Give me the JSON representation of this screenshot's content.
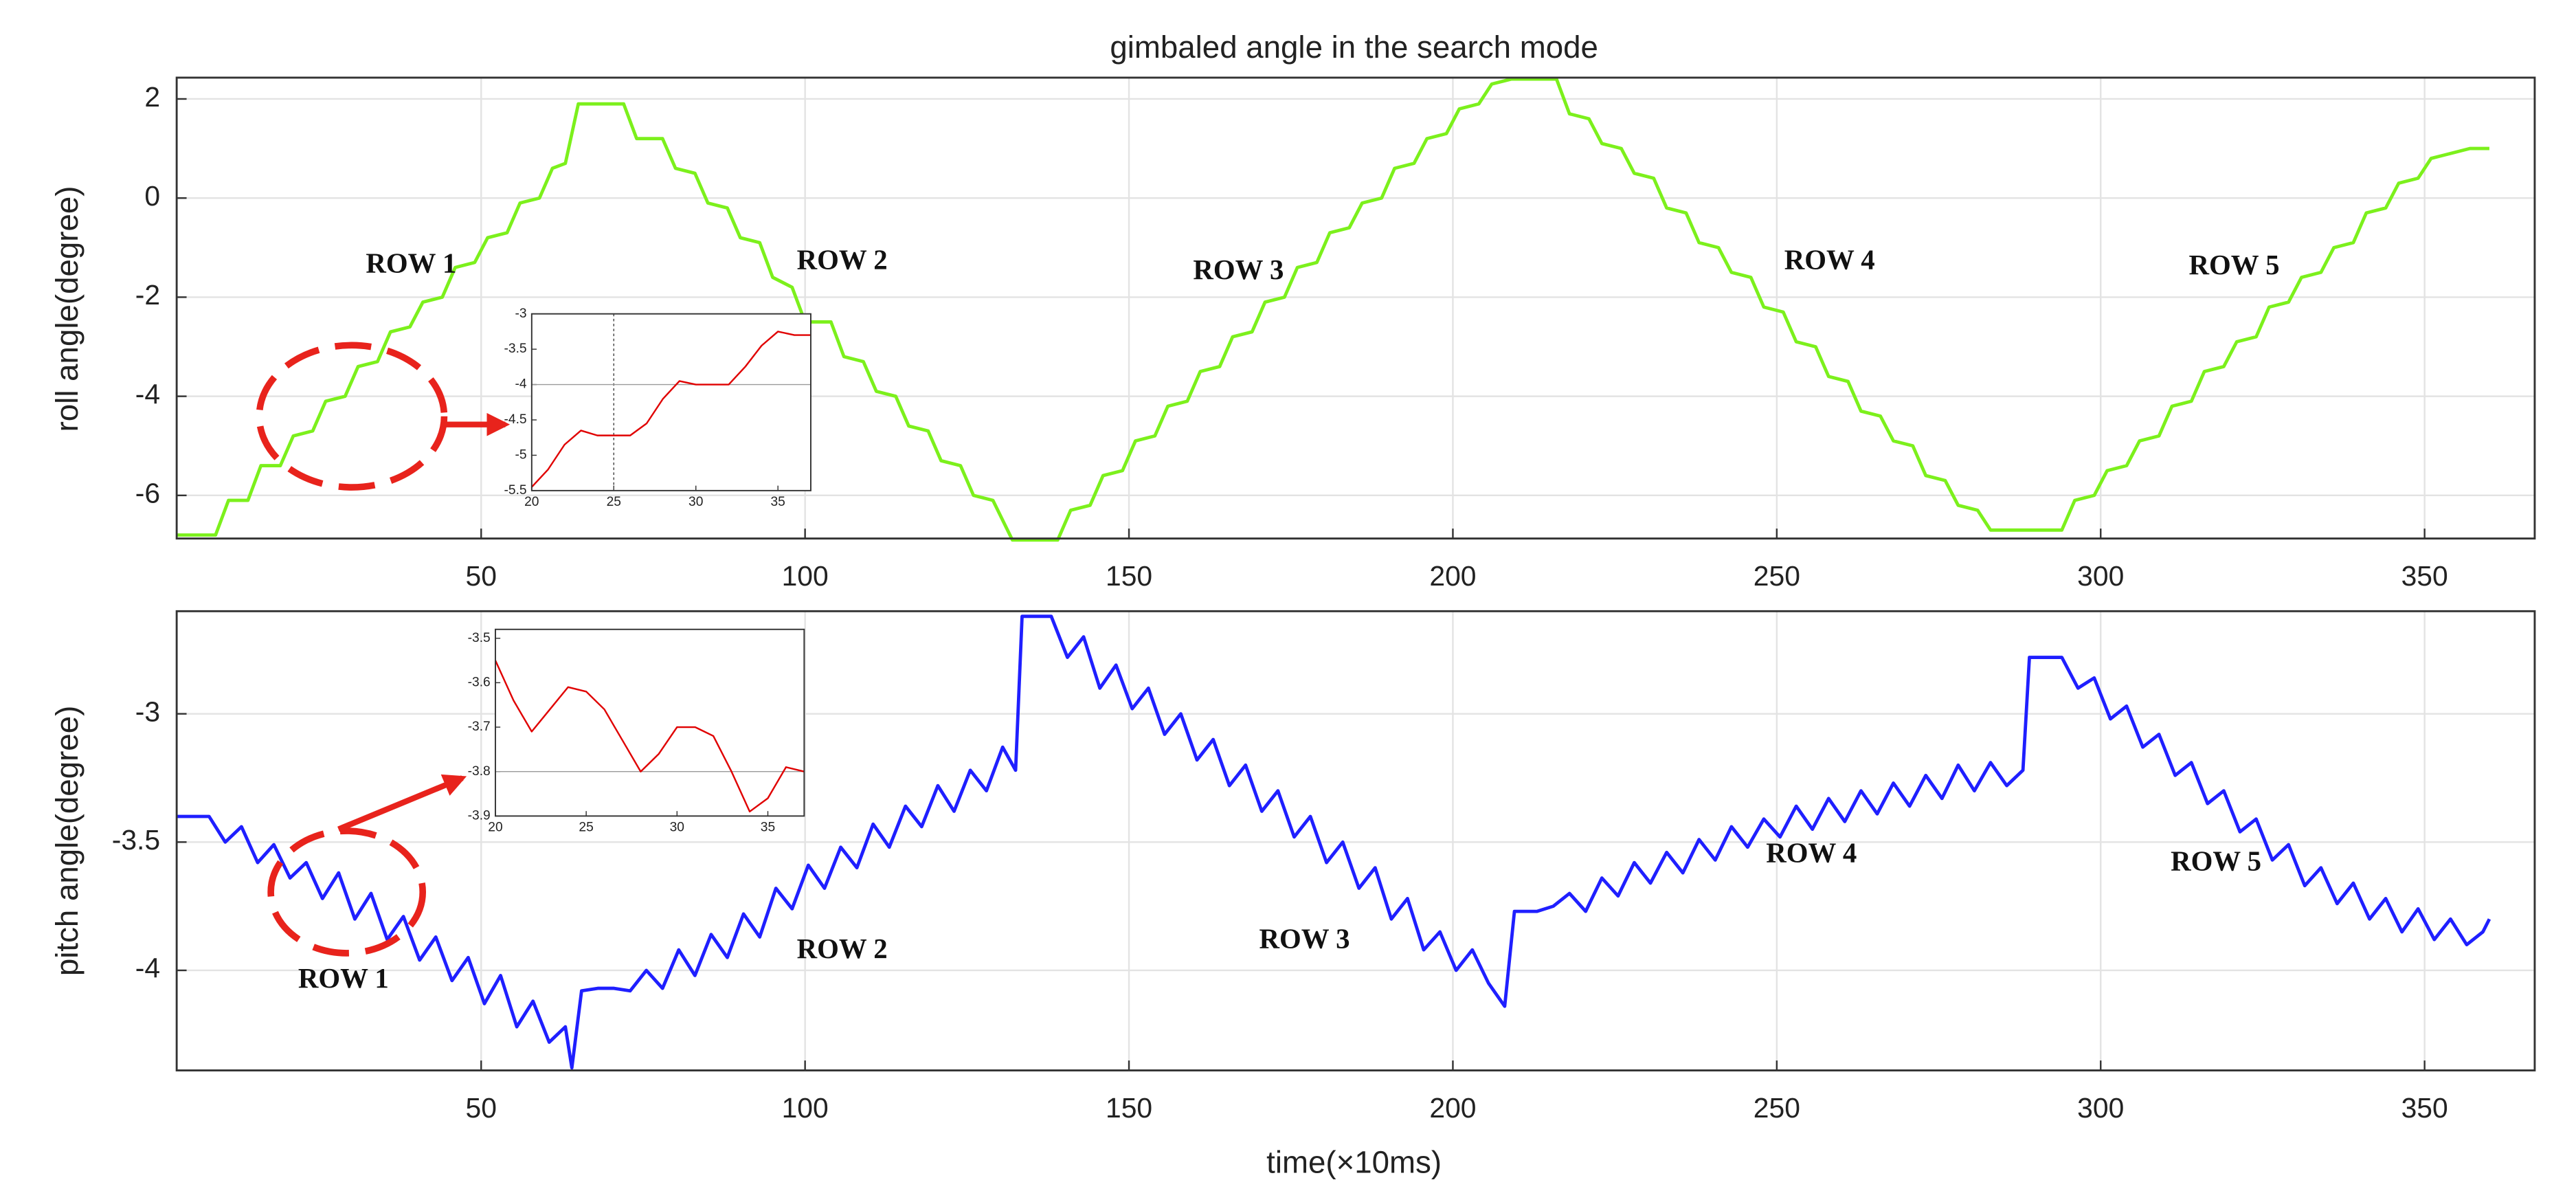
{
  "chart_data": [
    {
      "type": "line",
      "title": "gimbaled angle in the search mode",
      "ylabel": "roll angle(degree)",
      "xlim": [
        3,
        367
      ],
      "ylim": [
        -6.87,
        2.43
      ],
      "xticks": [
        50,
        100,
        150,
        200,
        250,
        300,
        350
      ],
      "yticks": [
        -6,
        -4,
        -2,
        0,
        2
      ],
      "grid": true,
      "color": "#7cf01c",
      "annotations": [
        "ROW 1",
        "ROW 2",
        "ROW 3",
        "ROW 4",
        "ROW 5"
      ],
      "x": [
        3,
        9,
        11,
        14,
        16,
        19,
        21,
        24,
        26,
        29,
        31,
        34,
        36,
        39,
        41,
        44,
        46,
        49,
        51,
        54,
        56,
        59,
        61,
        63,
        65,
        72,
        74,
        78,
        80,
        83,
        85,
        88,
        90,
        93,
        95,
        98,
        100,
        104,
        106,
        109,
        111,
        114,
        116,
        119,
        121,
        124,
        126,
        129,
        132,
        139,
        141,
        144,
        146,
        149,
        151,
        154,
        156,
        159,
        161,
        164,
        166,
        169,
        171,
        174,
        176,
        179,
        181,
        184,
        186,
        189,
        191,
        194,
        196,
        199,
        201,
        204,
        206,
        209,
        216,
        218,
        221,
        223,
        226,
        228,
        231,
        233,
        236,
        238,
        241,
        243,
        246,
        248,
        251,
        253,
        256,
        258,
        261,
        263,
        266,
        268,
        271,
        273,
        276,
        278,
        281,
        283,
        294,
        296,
        299,
        301,
        304,
        306,
        309,
        311,
        314,
        316,
        319,
        321,
        324,
        326,
        329,
        331,
        334,
        336,
        339,
        341,
        344,
        346,
        349,
        351,
        354,
        357,
        360
      ],
      "values": [
        -6.8,
        -6.8,
        -6.1,
        -6.1,
        -5.4,
        -5.4,
        -4.8,
        -4.7,
        -4.1,
        -4.0,
        -3.4,
        -3.3,
        -2.7,
        -2.6,
        -2.1,
        -2.0,
        -1.4,
        -1.3,
        -0.8,
        -0.7,
        -0.1,
        0.0,
        0.6,
        0.7,
        1.9,
        1.9,
        1.2,
        1.2,
        0.6,
        0.5,
        -0.1,
        -0.2,
        -0.8,
        -0.9,
        -1.6,
        -1.8,
        -2.5,
        -2.5,
        -3.2,
        -3.3,
        -3.9,
        -4.0,
        -4.6,
        -4.7,
        -5.3,
        -5.4,
        -6.0,
        -6.1,
        -6.9,
        -6.9,
        -6.3,
        -6.2,
        -5.6,
        -5.5,
        -4.9,
        -4.8,
        -4.2,
        -4.1,
        -3.5,
        -3.4,
        -2.8,
        -2.7,
        -2.1,
        -2.0,
        -1.4,
        -1.3,
        -0.7,
        -0.6,
        -0.1,
        0.0,
        0.6,
        0.7,
        1.2,
        1.3,
        1.8,
        1.9,
        2.3,
        2.4,
        2.4,
        1.7,
        1.6,
        1.1,
        1.0,
        0.5,
        0.4,
        -0.2,
        -0.3,
        -0.9,
        -1.0,
        -1.5,
        -1.6,
        -2.2,
        -2.3,
        -2.9,
        -3.0,
        -3.6,
        -3.7,
        -4.3,
        -4.4,
        -4.9,
        -5.0,
        -5.6,
        -5.7,
        -6.2,
        -6.3,
        -6.7,
        -6.7,
        -6.1,
        -6.0,
        -5.5,
        -5.4,
        -4.9,
        -4.8,
        -4.2,
        -4.1,
        -3.5,
        -3.4,
        -2.9,
        -2.8,
        -2.2,
        -2.1,
        -1.6,
        -1.5,
        -1.0,
        -0.9,
        -0.3,
        -0.2,
        0.3,
        0.4,
        0.8,
        0.9,
        1.0,
        1.0
      ]
    },
    {
      "type": "line",
      "ylabel": "pitch angle(degree)",
      "xlabel": "time(×10ms)",
      "xlim": [
        3,
        367
      ],
      "ylim": [
        -4.39,
        -2.6
      ],
      "xticks": [
        50,
        100,
        150,
        200,
        250,
        300,
        350
      ],
      "yticks": [
        -4,
        -3.5,
        -3
      ],
      "grid": true,
      "color": "#1f1fff",
      "annotations": [
        "ROW 1",
        "ROW 2",
        "ROW 3",
        "ROW 4",
        "ROW 5"
      ],
      "x": [
        3,
        5,
        8,
        10.5,
        13,
        15.5,
        18,
        20.5,
        23,
        25.5,
        28,
        30.5,
        33,
        35.5,
        38,
        40.5,
        43,
        45.5,
        48,
        50.5,
        53,
        55.5,
        58,
        60.5,
        63,
        64,
        65.5,
        68,
        70.5,
        73,
        75.5,
        78,
        80.5,
        83,
        85.5,
        88,
        90.5,
        93,
        95.5,
        98,
        100.5,
        103,
        105.5,
        108,
        110.5,
        113,
        115.5,
        118,
        120.5,
        123,
        125.5,
        128,
        130.5,
        132.5,
        133.5,
        138,
        140.5,
        143,
        145.5,
        148,
        150.5,
        153,
        155.5,
        158,
        160.5,
        163,
        165.5,
        168,
        170.5,
        173,
        175.5,
        178,
        180.5,
        183,
        185.5,
        188,
        190.5,
        193,
        195.5,
        198,
        200.5,
        203,
        205.5,
        208,
        209.5,
        213,
        215.5,
        218,
        220.5,
        223,
        225.5,
        228,
        230.5,
        233,
        235.5,
        238,
        240.5,
        243,
        245.5,
        248,
        250.5,
        253,
        255.5,
        258,
        260.5,
        263,
        265.5,
        268,
        270.5,
        273,
        275.5,
        278,
        280.5,
        283,
        285.5,
        288,
        289,
        294,
        296.5,
        299,
        301.5,
        304,
        306.5,
        309,
        311.5,
        314,
        316.5,
        319,
        321.5,
        324,
        326.5,
        329,
        331.5,
        334,
        336.5,
        339,
        341.5,
        344,
        346.5,
        349,
        351.5,
        354,
        356.5,
        359,
        360
      ],
      "values": [
        -3.4,
        -3.4,
        -3.4,
        -3.5,
        -3.44,
        -3.58,
        -3.51,
        -3.64,
        -3.58,
        -3.72,
        -3.62,
        -3.8,
        -3.7,
        -3.88,
        -3.79,
        -3.96,
        -3.87,
        -4.04,
        -3.95,
        -4.13,
        -4.02,
        -4.22,
        -4.12,
        -4.28,
        -4.22,
        -4.38,
        -4.08,
        -4.07,
        -4.07,
        -4.08,
        -4.0,
        -4.07,
        -3.92,
        -4.02,
        -3.86,
        -3.95,
        -3.78,
        -3.87,
        -3.68,
        -3.76,
        -3.59,
        -3.68,
        -3.52,
        -3.6,
        -3.43,
        -3.52,
        -3.36,
        -3.44,
        -3.28,
        -3.38,
        -3.22,
        -3.3,
        -3.13,
        -3.22,
        -2.62,
        -2.62,
        -2.78,
        -2.7,
        -2.9,
        -2.81,
        -2.98,
        -2.9,
        -3.08,
        -3.0,
        -3.18,
        -3.1,
        -3.28,
        -3.2,
        -3.38,
        -3.3,
        -3.48,
        -3.4,
        -3.58,
        -3.5,
        -3.68,
        -3.6,
        -3.8,
        -3.72,
        -3.92,
        -3.85,
        -4.0,
        -3.92,
        -4.05,
        -4.14,
        -3.77,
        -3.77,
        -3.75,
        -3.7,
        -3.77,
        -3.64,
        -3.71,
        -3.58,
        -3.66,
        -3.54,
        -3.62,
        -3.49,
        -3.57,
        -3.44,
        -3.52,
        -3.41,
        -3.48,
        -3.36,
        -3.45,
        -3.33,
        -3.42,
        -3.3,
        -3.39,
        -3.27,
        -3.36,
        -3.24,
        -3.33,
        -3.2,
        -3.3,
        -3.19,
        -3.28,
        -3.22,
        -2.78,
        -2.78,
        -2.9,
        -2.86,
        -3.02,
        -2.97,
        -3.13,
        -3.08,
        -3.24,
        -3.19,
        -3.35,
        -3.3,
        -3.46,
        -3.41,
        -3.57,
        -3.51,
        -3.67,
        -3.6,
        -3.74,
        -3.66,
        -3.8,
        -3.72,
        -3.85,
        -3.76,
        -3.88,
        -3.8,
        -3.9,
        -3.85,
        -3.8
      ]
    },
    {
      "type": "line",
      "xlim": [
        20,
        37
      ],
      "ylim": [
        -5.5,
        -3
      ],
      "xticks": [
        20,
        25,
        30,
        35
      ],
      "yticks": [
        -3,
        -3.5,
        -4,
        -4.5,
        -5,
        -5.5
      ],
      "grid": false,
      "color": "#e00000",
      "reference_lines": {
        "x": [
          25
        ],
        "y": [
          -4
        ]
      },
      "x": [
        20,
        21,
        22,
        23,
        24,
        25,
        26,
        27,
        28,
        29,
        30,
        31,
        32,
        33,
        34,
        35,
        36,
        37
      ],
      "values": [
        -5.45,
        -5.2,
        -4.85,
        -4.65,
        -4.72,
        -4.72,
        -4.72,
        -4.55,
        -4.2,
        -3.95,
        -4.0,
        -4.0,
        -4.0,
        -3.75,
        -3.45,
        -3.25,
        -3.3,
        -3.3
      ]
    },
    {
      "type": "line",
      "xlim": [
        20,
        37
      ],
      "ylim": [
        -3.9,
        -3.48
      ],
      "xticks": [
        20,
        25,
        30,
        35
      ],
      "yticks": [
        -3.5,
        -3.6,
        -3.7,
        -3.8,
        -3.9
      ],
      "grid": false,
      "color": "#e00000",
      "reference_lines": {
        "x": [],
        "y": [
          -3.8
        ]
      },
      "x": [
        20,
        21,
        22,
        23,
        24,
        25,
        26,
        27,
        28,
        29,
        30,
        31,
        32,
        33,
        34,
        35,
        36,
        37
      ],
      "values": [
        -3.55,
        -3.64,
        -3.71,
        -3.66,
        -3.61,
        -3.62,
        -3.66,
        -3.73,
        -3.8,
        -3.76,
        -3.7,
        -3.7,
        -3.72,
        -3.8,
        -3.89,
        -3.86,
        -3.79,
        -3.8
      ]
    }
  ]
}
